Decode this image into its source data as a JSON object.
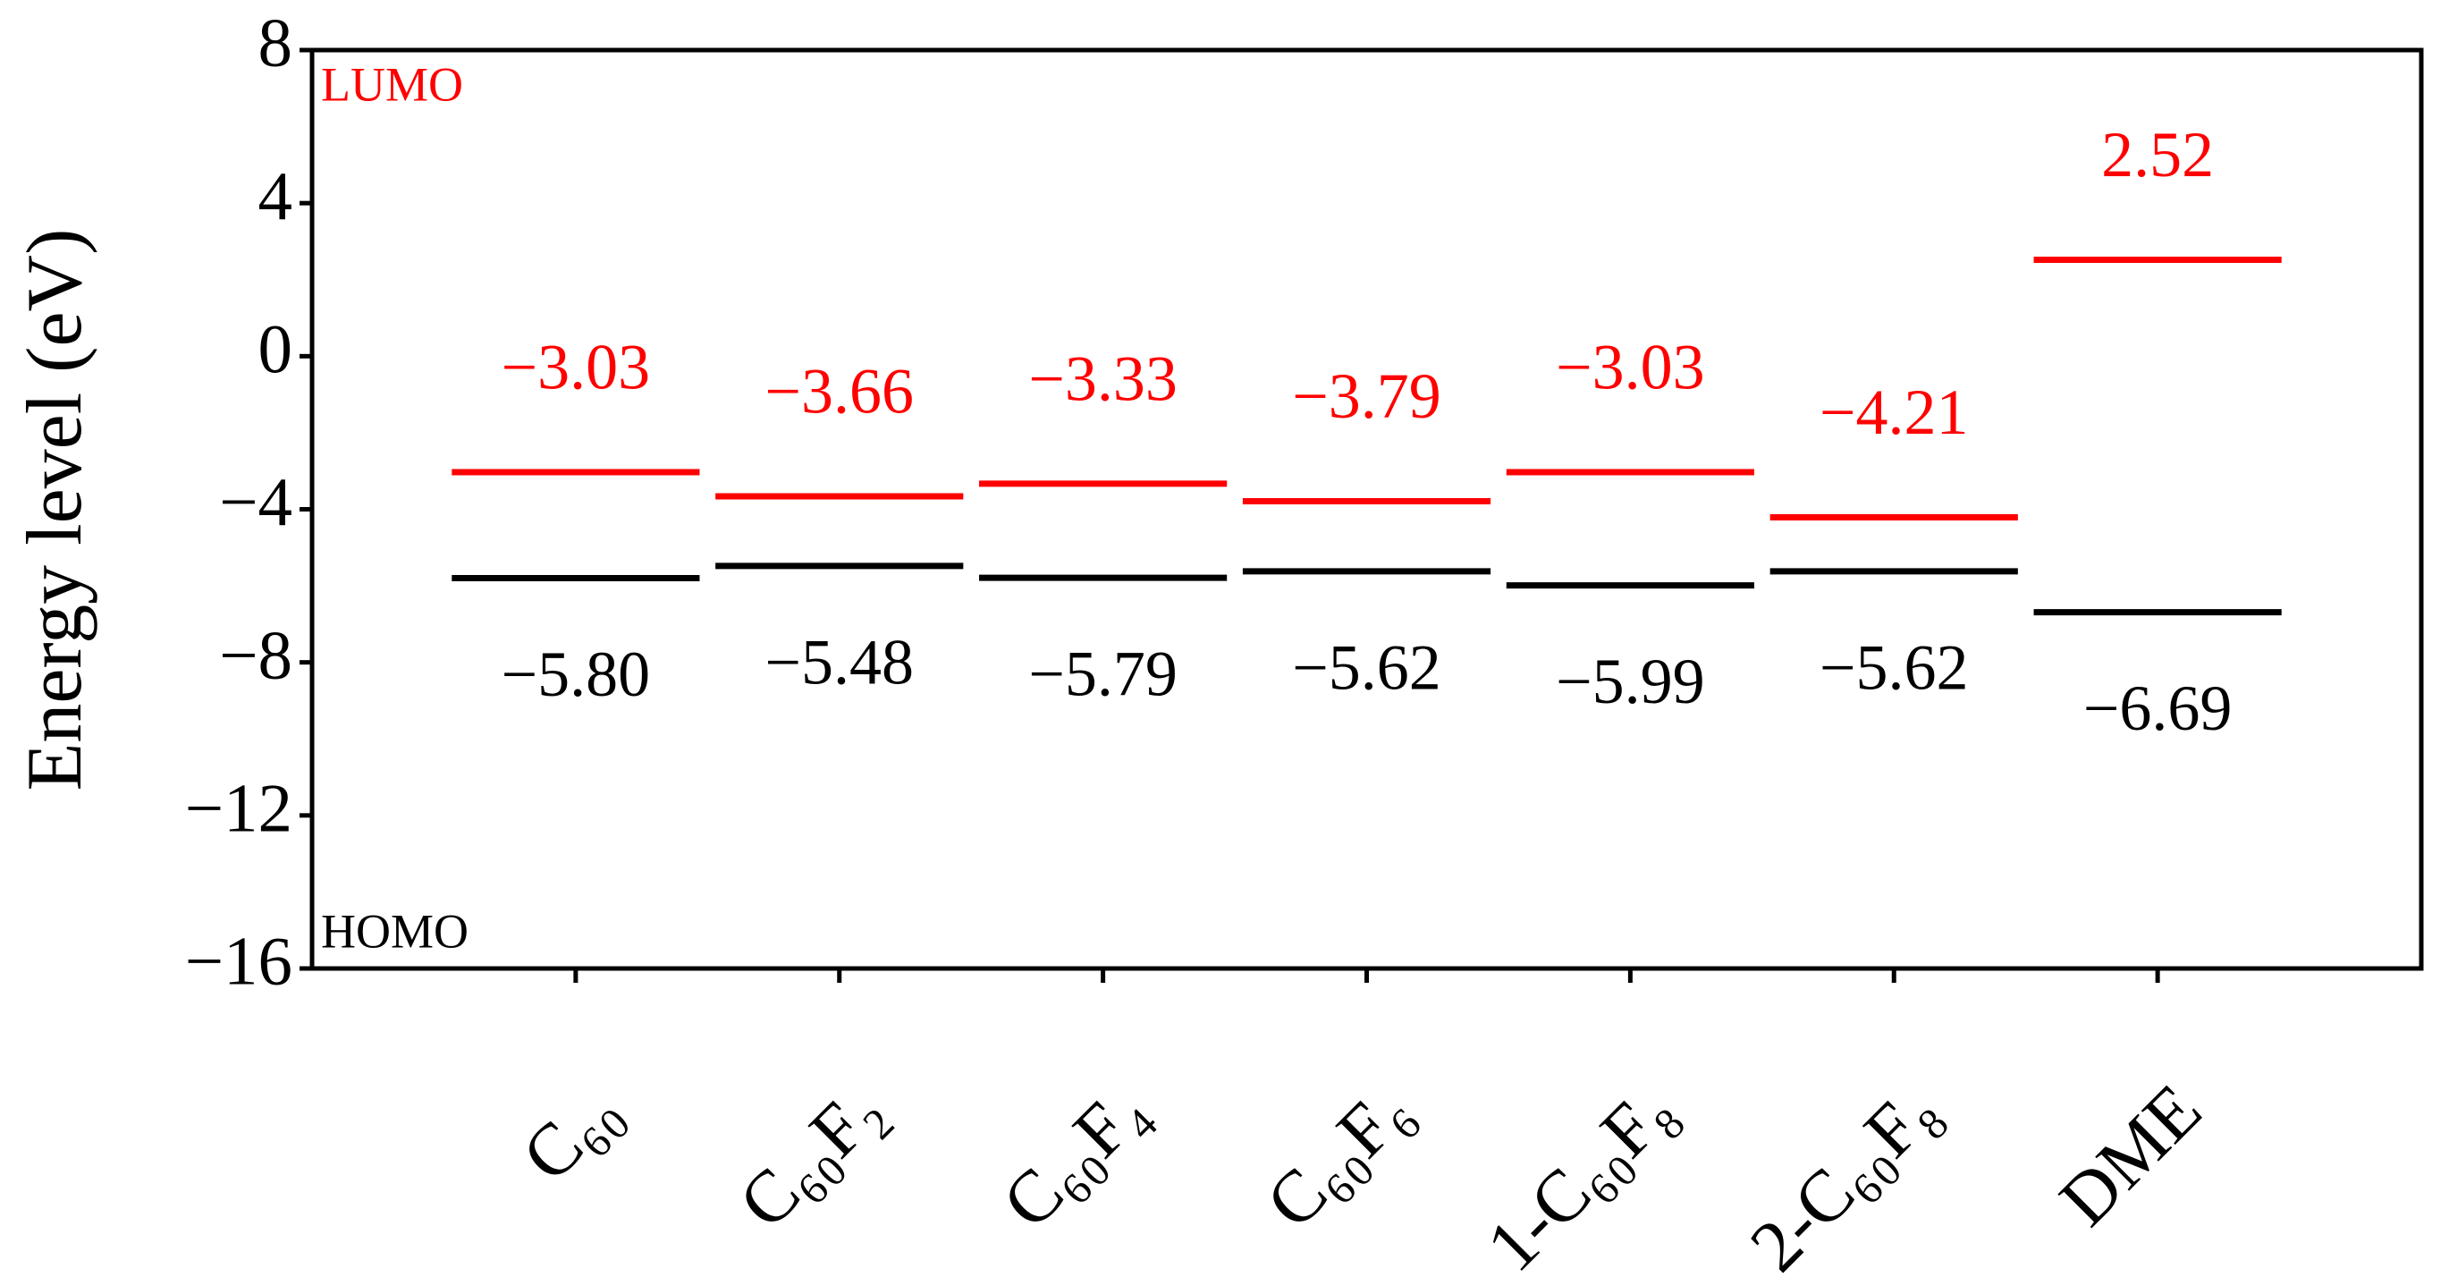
{
  "chart_data": {
    "type": "energy-level",
    "ylabel": "Energy level (eV)",
    "categories": [
      "C₆₀",
      "C₆₀F₂",
      "C₆₀F₄",
      "C₆₀F₆",
      "1-C₆₀F₈",
      "2-C₆₀F₈",
      "DME"
    ],
    "series": [
      {
        "name": "LUMO",
        "color": "#ff0000",
        "values": [
          -3.03,
          -3.66,
          -3.33,
          -3.79,
          -3.03,
          -4.21,
          2.52
        ],
        "value_labels": [
          "−3.03",
          "−3.66",
          "−3.33",
          "−3.79",
          "−3.03",
          "−4.21",
          "2.52"
        ]
      },
      {
        "name": "HOMO",
        "color": "#000000",
        "values": [
          -5.8,
          -5.48,
          -5.79,
          -5.62,
          -5.99,
          -5.62,
          -6.69
        ],
        "value_labels": [
          "−5.80",
          "−5.48",
          "−5.79",
          "−5.62",
          "−5.99",
          "−5.62",
          "−6.69"
        ]
      }
    ],
    "ylim": [
      -16,
      8
    ],
    "yticks": [
      8,
      4,
      0,
      {
        "value": -4,
        "label": "−4"
      },
      {
        "value": -8,
        "label": "−8"
      },
      {
        "value": -12,
        "label": "−12"
      },
      {
        "value": -16,
        "label": "−16"
      }
    ]
  }
}
